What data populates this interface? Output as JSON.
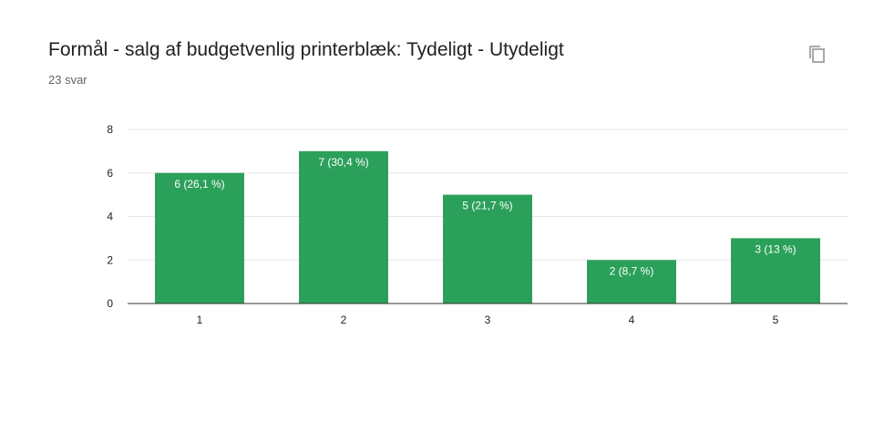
{
  "header": {
    "title": "Formål - salg af budgetvenlig printerblæk: Tydeligt - Utydeligt",
    "response_count": "23 svar",
    "copy_icon": "copy-icon"
  },
  "colors": {
    "bar": "#2ba05a",
    "grid": "#e6e6e6",
    "axis": "#333333"
  },
  "chart_data": {
    "type": "bar",
    "title": "Formål - salg af budgetvenlig printerblæk: Tydeligt - Utydeligt",
    "xlabel": "",
    "ylabel": "",
    "categories": [
      "1",
      "2",
      "3",
      "4",
      "5"
    ],
    "values": [
      6,
      7,
      5,
      2,
      3
    ],
    "data_labels": [
      "6 (26,1 %)",
      "7 (30,4 %)",
      "5 (21,7 %)",
      "2 (8,7 %)",
      "3 (13 %)"
    ],
    "ylim": [
      0,
      8
    ],
    "yticks": [
      0,
      2,
      4,
      6,
      8
    ],
    "grid": true,
    "legend": "none"
  }
}
